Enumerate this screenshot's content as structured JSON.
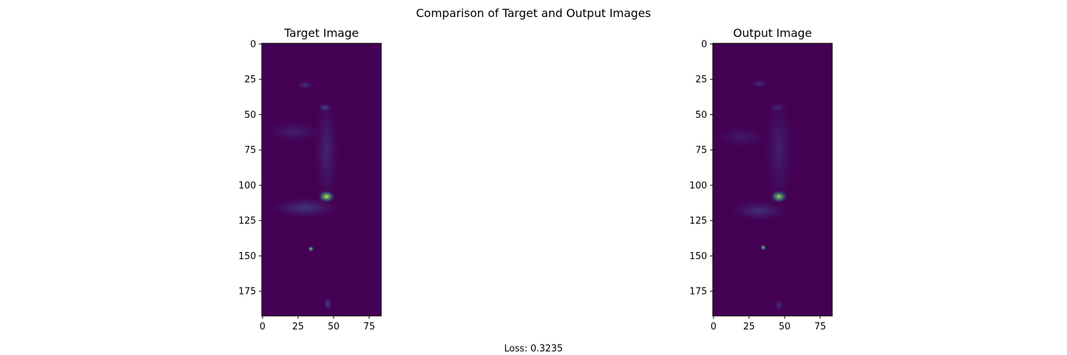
{
  "figure": {
    "suptitle": "Comparison of Target and Output Images",
    "footer": "Loss: 0.3235"
  },
  "chart_data": [
    {
      "type": "heatmap",
      "title": "Target Image",
      "colormap": "viridis",
      "background_color": "#440154",
      "xlim": [
        -0.5,
        83.5
      ],
      "ylim": [
        192.5,
        -0.5
      ],
      "x_ticks": [
        0,
        25,
        50,
        75
      ],
      "y_ticks": [
        0,
        25,
        50,
        75,
        100,
        125,
        150,
        175
      ],
      "features": [
        {
          "x": 30,
          "y": 29,
          "rx": 4,
          "ry": 2,
          "intensity": 0.18
        },
        {
          "x": 44,
          "y": 45,
          "rx": 3,
          "ry": 2,
          "intensity": 0.4
        },
        {
          "x": 45,
          "y": 75,
          "rx": 6,
          "ry": 28,
          "intensity": 0.12
        },
        {
          "x": 22,
          "y": 62,
          "rx": 14,
          "ry": 5,
          "intensity": 0.1
        },
        {
          "x": 45,
          "y": 108,
          "rx": 4,
          "ry": 3,
          "intensity": 0.95
        },
        {
          "x": 30,
          "y": 116,
          "rx": 16,
          "ry": 5,
          "intensity": 0.18
        },
        {
          "x": 34,
          "y": 145,
          "rx": 1.5,
          "ry": 1.5,
          "intensity": 0.85
        },
        {
          "x": 46,
          "y": 184,
          "rx": 2,
          "ry": 3,
          "intensity": 0.25
        }
      ]
    },
    {
      "type": "heatmap",
      "title": "Output Image",
      "colormap": "viridis",
      "background_color": "#440154",
      "xlim": [
        -0.5,
        83.5
      ],
      "ylim": [
        192.5,
        -0.5
      ],
      "x_ticks": [
        0,
        25,
        50,
        75
      ],
      "y_ticks": [
        0,
        25,
        50,
        75,
        100,
        125,
        150,
        175
      ],
      "features": [
        {
          "x": 32,
          "y": 28,
          "rx": 4,
          "ry": 2,
          "intensity": 0.16
        },
        {
          "x": 45,
          "y": 45,
          "rx": 4,
          "ry": 2,
          "intensity": 0.22
        },
        {
          "x": 46,
          "y": 75,
          "rx": 7,
          "ry": 28,
          "intensity": 0.1
        },
        {
          "x": 20,
          "y": 66,
          "rx": 12,
          "ry": 5,
          "intensity": 0.08
        },
        {
          "x": 46,
          "y": 108,
          "rx": 4,
          "ry": 3,
          "intensity": 0.9
        },
        {
          "x": 32,
          "y": 118,
          "rx": 14,
          "ry": 5,
          "intensity": 0.15
        },
        {
          "x": 35,
          "y": 144,
          "rx": 1.5,
          "ry": 1.5,
          "intensity": 0.8
        },
        {
          "x": 46,
          "y": 185,
          "rx": 2,
          "ry": 3,
          "intensity": 0.15
        }
      ]
    }
  ]
}
